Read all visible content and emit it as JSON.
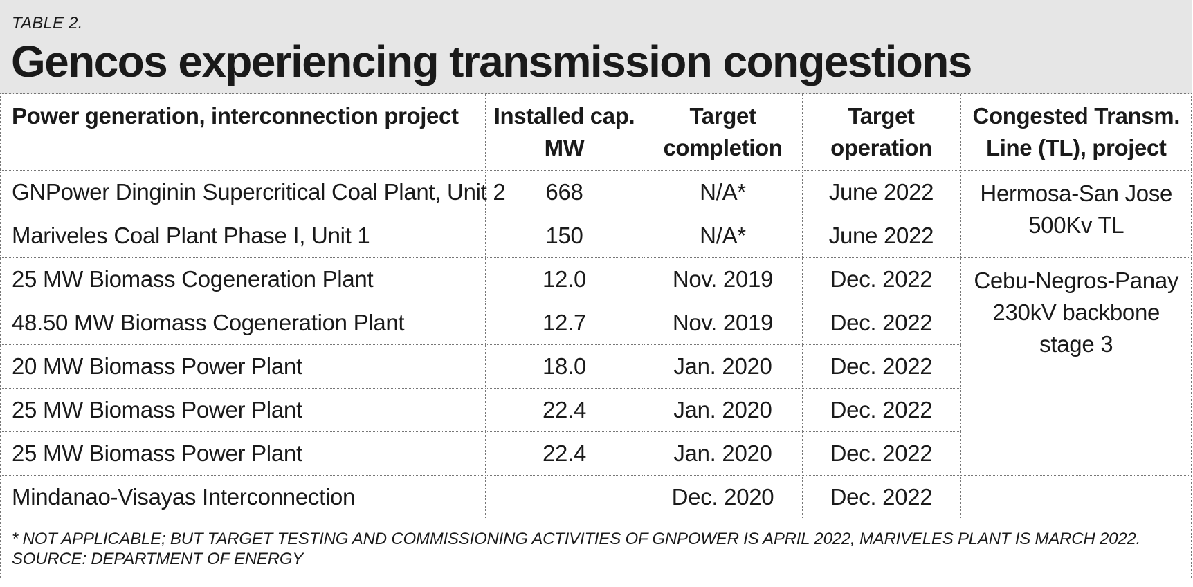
{
  "header": {
    "table_label": "TABLE 2.",
    "title": "Gencos experiencing transmission congestions"
  },
  "chart_data": {
    "type": "table",
    "columns": [
      "Power generation, interconnection project",
      "Installed cap. MW",
      "Target completion",
      "Target operation",
      "Congested Transm. Line (TL), project"
    ],
    "header_lines": [
      [
        "Power generation, interconnection project"
      ],
      [
        "Installed cap.",
        "MW"
      ],
      [
        "Target",
        "completion"
      ],
      [
        "Target",
        "operation"
      ],
      [
        "Congested Transm.",
        "Line (TL), project"
      ]
    ],
    "rows": [
      {
        "project": "GNPower Dinginin Supercritical Coal Plant, Unit 2",
        "capacity": "668",
        "completion": "N/A*",
        "operation": "June 2022"
      },
      {
        "project": "Mariveles Coal Plant Phase I, Unit 1",
        "capacity": "150",
        "completion": "N/A*",
        "operation": "June 2022"
      },
      {
        "project": "25 MW Biomass Cogeneration Plant",
        "capacity": "12.0",
        "completion": "Nov. 2019",
        "operation": "Dec. 2022"
      },
      {
        "project": "48.50 MW Biomass Cogeneration Plant",
        "capacity": "12.7",
        "completion": "Nov. 2019",
        "operation": "Dec. 2022"
      },
      {
        "project": "20 MW Biomass Power Plant",
        "capacity": "18.0",
        "completion": "Jan. 2020",
        "operation": "Dec. 2022"
      },
      {
        "project": "25 MW Biomass Power Plant",
        "capacity": "22.4",
        "completion": "Jan. 2020",
        "operation": "Dec. 2022"
      },
      {
        "project": "25 MW Biomass Power Plant",
        "capacity": "22.4",
        "completion": "Jan. 2020",
        "operation": "Dec. 2022"
      },
      {
        "project": "Mindanao-Visayas Interconnection",
        "capacity": "",
        "completion": "Dec. 2020",
        "operation": "Dec. 2022"
      }
    ],
    "transmission_lines": [
      {
        "rows_spanned": 2,
        "lines": [
          "Hermosa-San Jose",
          "500Kv TL"
        ]
      },
      {
        "rows_spanned": 5,
        "lines": [
          "Cebu-Negros-Panay",
          "230kV backbone",
          "stage 3"
        ]
      },
      {
        "rows_spanned": 1,
        "lines": []
      }
    ]
  },
  "footer": {
    "note": "* NOT APPLICABLE; BUT TARGET TESTING AND COMMISSIONING ACTIVITIES OF GNPOWER IS APRIL 2022, MARIVELES PLANT IS MARCH 2022.",
    "source": "SOURCE: DEPARTMENT OF ENERGY"
  },
  "colors": {
    "header_background": "#e6e6e6",
    "text": "#1a1a1a",
    "grid": "#777777"
  }
}
